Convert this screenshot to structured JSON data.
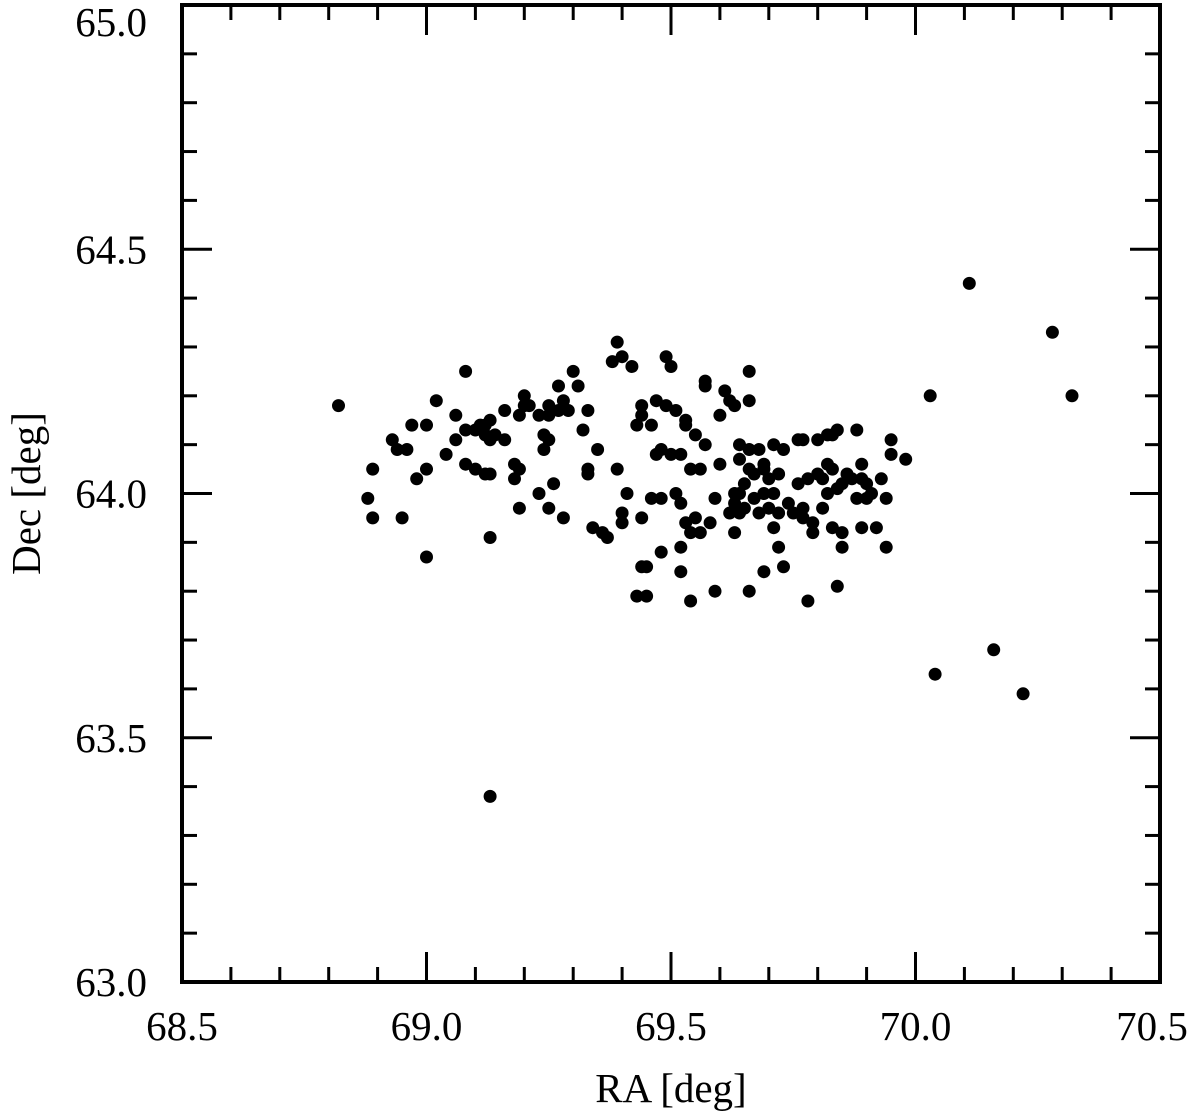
{
  "chart_data": {
    "type": "scatter",
    "title": "",
    "xlabel": "RA [deg]",
    "ylabel": "Dec [deg]",
    "xlim": [
      68.5,
      70.5
    ],
    "ylim": [
      63.0,
      65.0
    ],
    "x_ticks": [
      "68.5",
      "69.0",
      "69.5",
      "70.0",
      "70.5"
    ],
    "y_ticks": [
      "63.0",
      "63.5",
      "64.0",
      "64.5",
      "65.0"
    ],
    "grid": false,
    "legend": "none",
    "marker_color": "#000000",
    "series": [
      {
        "points": [
          [
            68.82,
            64.18
          ],
          [
            68.88,
            63.99
          ],
          [
            68.89,
            64.05
          ],
          [
            68.89,
            63.95
          ],
          [
            68.93,
            64.11
          ],
          [
            68.94,
            64.09
          ],
          [
            68.95,
            63.95
          ],
          [
            68.96,
            64.09
          ],
          [
            68.97,
            64.14
          ],
          [
            68.98,
            64.03
          ],
          [
            69.0,
            64.14
          ],
          [
            69.0,
            64.05
          ],
          [
            69.0,
            63.87
          ],
          [
            69.02,
            64.19
          ],
          [
            69.04,
            64.08
          ],
          [
            69.06,
            64.16
          ],
          [
            69.06,
            64.11
          ],
          [
            69.08,
            64.06
          ],
          [
            69.08,
            64.25
          ],
          [
            69.08,
            64.13
          ],
          [
            69.1,
            64.13
          ],
          [
            69.1,
            64.05
          ],
          [
            69.11,
            64.14
          ],
          [
            69.12,
            64.14
          ],
          [
            69.12,
            64.12
          ],
          [
            69.12,
            64.04
          ],
          [
            69.13,
            64.11
          ],
          [
            69.13,
            64.15
          ],
          [
            69.13,
            64.04
          ],
          [
            69.13,
            63.91
          ],
          [
            69.13,
            63.38
          ],
          [
            69.14,
            64.12
          ],
          [
            69.16,
            64.11
          ],
          [
            69.16,
            64.17
          ],
          [
            69.18,
            64.06
          ],
          [
            69.18,
            64.03
          ],
          [
            69.19,
            64.16
          ],
          [
            69.19,
            63.97
          ],
          [
            69.19,
            64.05
          ],
          [
            69.2,
            64.2
          ],
          [
            69.2,
            64.18
          ],
          [
            69.21,
            64.18
          ],
          [
            69.23,
            64.16
          ],
          [
            69.23,
            64.0
          ],
          [
            69.24,
            64.09
          ],
          [
            69.24,
            64.12
          ],
          [
            69.25,
            64.16
          ],
          [
            69.25,
            64.11
          ],
          [
            69.25,
            64.18
          ],
          [
            69.25,
            63.97
          ],
          [
            69.26,
            64.02
          ],
          [
            69.27,
            64.22
          ],
          [
            69.27,
            64.17
          ],
          [
            69.28,
            64.19
          ],
          [
            69.28,
            63.95
          ],
          [
            69.29,
            64.17
          ],
          [
            69.3,
            64.25
          ],
          [
            69.31,
            64.22
          ],
          [
            69.32,
            64.13
          ],
          [
            69.33,
            64.17
          ],
          [
            69.33,
            64.04
          ],
          [
            69.33,
            64.05
          ],
          [
            69.34,
            63.93
          ],
          [
            69.35,
            64.09
          ],
          [
            69.36,
            63.92
          ],
          [
            69.37,
            63.91
          ],
          [
            69.38,
            64.27
          ],
          [
            69.39,
            64.31
          ],
          [
            69.39,
            64.05
          ],
          [
            69.4,
            64.28
          ],
          [
            69.4,
            63.96
          ],
          [
            69.4,
            63.94
          ],
          [
            69.41,
            64.0
          ],
          [
            69.42,
            64.26
          ],
          [
            69.43,
            64.14
          ],
          [
            69.43,
            63.79
          ],
          [
            69.44,
            64.16
          ],
          [
            69.44,
            64.18
          ],
          [
            69.44,
            63.95
          ],
          [
            69.44,
            63.85
          ],
          [
            69.45,
            63.85
          ],
          [
            69.45,
            63.79
          ],
          [
            69.46,
            64.14
          ],
          [
            69.46,
            63.99
          ],
          [
            69.47,
            64.19
          ],
          [
            69.47,
            64.08
          ],
          [
            69.48,
            64.09
          ],
          [
            69.48,
            63.99
          ],
          [
            69.48,
            63.88
          ],
          [
            69.49,
            64.28
          ],
          [
            69.49,
            64.18
          ],
          [
            69.5,
            64.26
          ],
          [
            69.5,
            64.08
          ],
          [
            69.51,
            64.17
          ],
          [
            69.51,
            64.0
          ],
          [
            69.52,
            64.08
          ],
          [
            69.52,
            63.98
          ],
          [
            69.52,
            63.89
          ],
          [
            69.52,
            63.84
          ],
          [
            69.53,
            64.15
          ],
          [
            69.53,
            64.14
          ],
          [
            69.53,
            63.94
          ],
          [
            69.54,
            64.05
          ],
          [
            69.54,
            63.92
          ],
          [
            69.54,
            63.78
          ],
          [
            69.55,
            64.12
          ],
          [
            69.55,
            63.95
          ],
          [
            69.56,
            64.05
          ],
          [
            69.56,
            63.92
          ],
          [
            69.57,
            64.22
          ],
          [
            69.57,
            64.23
          ],
          [
            69.57,
            64.1
          ],
          [
            69.58,
            63.94
          ],
          [
            69.59,
            63.99
          ],
          [
            69.59,
            63.8
          ],
          [
            69.6,
            64.06
          ],
          [
            69.6,
            64.16
          ],
          [
            69.61,
            64.21
          ],
          [
            69.62,
            64.19
          ],
          [
            69.62,
            63.96
          ],
          [
            69.63,
            64.18
          ],
          [
            69.63,
            64.0
          ],
          [
            69.63,
            63.98
          ],
          [
            69.63,
            63.92
          ],
          [
            69.64,
            64.1
          ],
          [
            69.64,
            64.07
          ],
          [
            69.64,
            64.0
          ],
          [
            69.64,
            63.96
          ],
          [
            69.65,
            64.02
          ],
          [
            69.65,
            63.97
          ],
          [
            69.66,
            64.25
          ],
          [
            69.66,
            64.19
          ],
          [
            69.66,
            64.09
          ],
          [
            69.66,
            64.05
          ],
          [
            69.66,
            63.8
          ],
          [
            69.67,
            64.04
          ],
          [
            69.67,
            63.99
          ],
          [
            69.68,
            63.96
          ],
          [
            69.68,
            64.09
          ],
          [
            69.69,
            64.0
          ],
          [
            69.69,
            64.06
          ],
          [
            69.69,
            64.05
          ],
          [
            69.69,
            63.84
          ],
          [
            69.7,
            64.03
          ],
          [
            69.7,
            63.97
          ],
          [
            69.71,
            63.93
          ],
          [
            69.71,
            64.0
          ],
          [
            69.71,
            64.1
          ],
          [
            69.72,
            63.89
          ],
          [
            69.72,
            63.96
          ],
          [
            69.72,
            64.04
          ],
          [
            69.73,
            64.09
          ],
          [
            69.73,
            63.85
          ],
          [
            69.74,
            63.98
          ],
          [
            69.75,
            63.96
          ],
          [
            69.76,
            64.02
          ],
          [
            69.76,
            64.11
          ],
          [
            69.77,
            64.11
          ],
          [
            69.77,
            63.97
          ],
          [
            69.77,
            63.95
          ],
          [
            69.78,
            63.78
          ],
          [
            69.78,
            64.03
          ],
          [
            69.79,
            63.94
          ],
          [
            69.79,
            63.92
          ],
          [
            69.8,
            64.11
          ],
          [
            69.8,
            64.04
          ],
          [
            69.81,
            64.03
          ],
          [
            69.81,
            63.97
          ],
          [
            69.82,
            64.06
          ],
          [
            69.82,
            64.0
          ],
          [
            69.82,
            64.12
          ],
          [
            69.83,
            64.05
          ],
          [
            69.83,
            63.93
          ],
          [
            69.83,
            64.12
          ],
          [
            69.84,
            64.01
          ],
          [
            69.84,
            63.81
          ],
          [
            69.84,
            64.13
          ],
          [
            69.85,
            63.92
          ],
          [
            69.85,
            64.02
          ],
          [
            69.85,
            63.89
          ],
          [
            69.86,
            64.04
          ],
          [
            69.87,
            64.03
          ],
          [
            69.88,
            63.99
          ],
          [
            69.88,
            64.13
          ],
          [
            69.89,
            64.06
          ],
          [
            69.89,
            64.03
          ],
          [
            69.89,
            63.93
          ],
          [
            69.9,
            64.02
          ],
          [
            69.9,
            63.99
          ],
          [
            69.91,
            64.0
          ],
          [
            69.92,
            63.93
          ],
          [
            69.93,
            64.03
          ],
          [
            69.94,
            63.99
          ],
          [
            69.94,
            63.89
          ],
          [
            69.95,
            64.08
          ],
          [
            69.95,
            64.11
          ],
          [
            69.98,
            64.07
          ],
          [
            70.03,
            64.2
          ],
          [
            70.04,
            63.63
          ],
          [
            70.11,
            64.43
          ],
          [
            70.16,
            63.68
          ],
          [
            70.22,
            63.59
          ],
          [
            70.28,
            64.33
          ],
          [
            70.32,
            64.2
          ]
        ]
      }
    ]
  }
}
